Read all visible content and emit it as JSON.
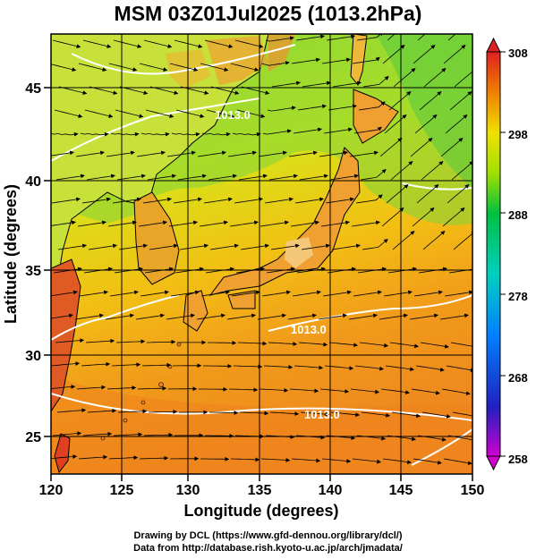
{
  "title": "MSM 03Z01Jul2025 (1013.2hPa)",
  "x_axis": {
    "label": "Longitude (degrees)",
    "ticks": [
      "120",
      "125",
      "130",
      "135",
      "140",
      "145",
      "150"
    ],
    "range": [
      120,
      150
    ]
  },
  "y_axis": {
    "label": "Latitude  (degrees)",
    "ticks": [
      "25",
      "30",
      "35",
      "40",
      "45"
    ],
    "range": [
      22.5,
      47.5
    ]
  },
  "colorbar": {
    "ticks": [
      "258",
      "268",
      "278",
      "288",
      "298",
      "308"
    ],
    "range": [
      258,
      308
    ],
    "colors": [
      "#d000d0",
      "#0000c0",
      "#0080ff",
      "#00d0c0",
      "#00c040",
      "#a0e000",
      "#f0e000",
      "#f08000",
      "#e02020"
    ]
  },
  "contour_labels": [
    "1013.0",
    "1013.0",
    "1013.0"
  ],
  "footer": {
    "line1": "Drawing by DCL (https://www.gfd-dennou.org/library/dcl/)",
    "line2": "Data from http://database.rish.kyoto-u.ac.jp/arch/jmadata/"
  }
}
